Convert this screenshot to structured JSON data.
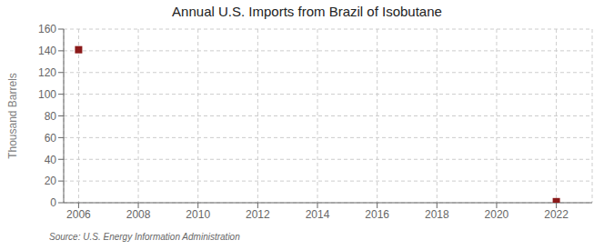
{
  "chart_data": {
    "type": "scatter",
    "title": "Annual U.S. Imports from Brazil of Isobutane",
    "ylabel": "Thousand Barrels",
    "annotation": "Source: U.S. Energy Information Administration",
    "x": [
      2006,
      2022
    ],
    "values": [
      141,
      1
    ],
    "color": "#8b1a1a",
    "marker": "square",
    "xlim": [
      2005.5,
      2023.2
    ],
    "ylim": [
      0,
      160
    ],
    "xticks": [
      2006,
      2008,
      2010,
      2012,
      2014,
      2016,
      2018,
      2020,
      2022
    ],
    "yticks": [
      0,
      20,
      40,
      60,
      80,
      100,
      120,
      140,
      160
    ],
    "grid": true
  }
}
